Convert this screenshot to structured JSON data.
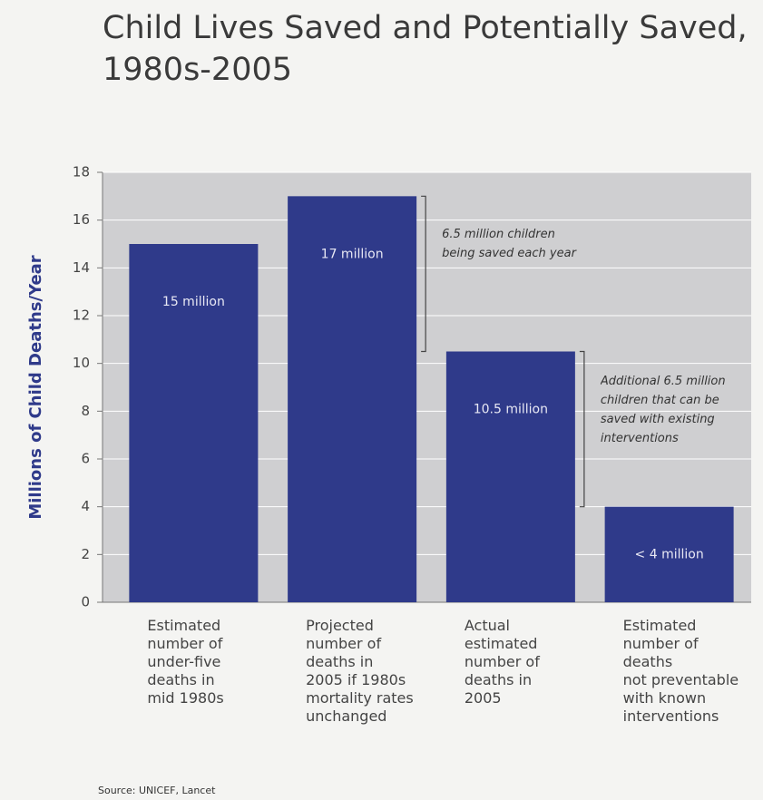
{
  "chart_data": {
    "type": "bar",
    "title": "Child Lives Saved and Potentially Saved,\n1980s-2005",
    "y_label": "Millions of Child Deaths/Year",
    "categories": [
      "Estimated\nnumber of\nunder-five\ndeaths in\nmid 1980s",
      "Projected\nnumber of\ndeaths in\n2005 if 1980s\nmortality rates\nunchanged",
      "Actual\nestimated\nnumber of\ndeaths in\n2005",
      "Estimated\nnumber of\ndeaths\nnot preventable\nwith known\ninterventions"
    ],
    "values": [
      15,
      17,
      10.5,
      4
    ],
    "value_labels": [
      "15 million",
      "17 million",
      "10.5 million",
      "< 4 million"
    ],
    "color": "#2f3a8a",
    "ylim": [
      0,
      18
    ],
    "yticks": [
      0,
      2,
      4,
      6,
      8,
      10,
      12,
      14,
      16,
      18
    ],
    "grid": true,
    "annotations": [
      "6.5 million children\nbeing saved each year",
      "Additional 6.5 million\nchildren that can be\nsaved with existing\ninterventions"
    ],
    "source": "Source: UNICEF, Lancet"
  }
}
